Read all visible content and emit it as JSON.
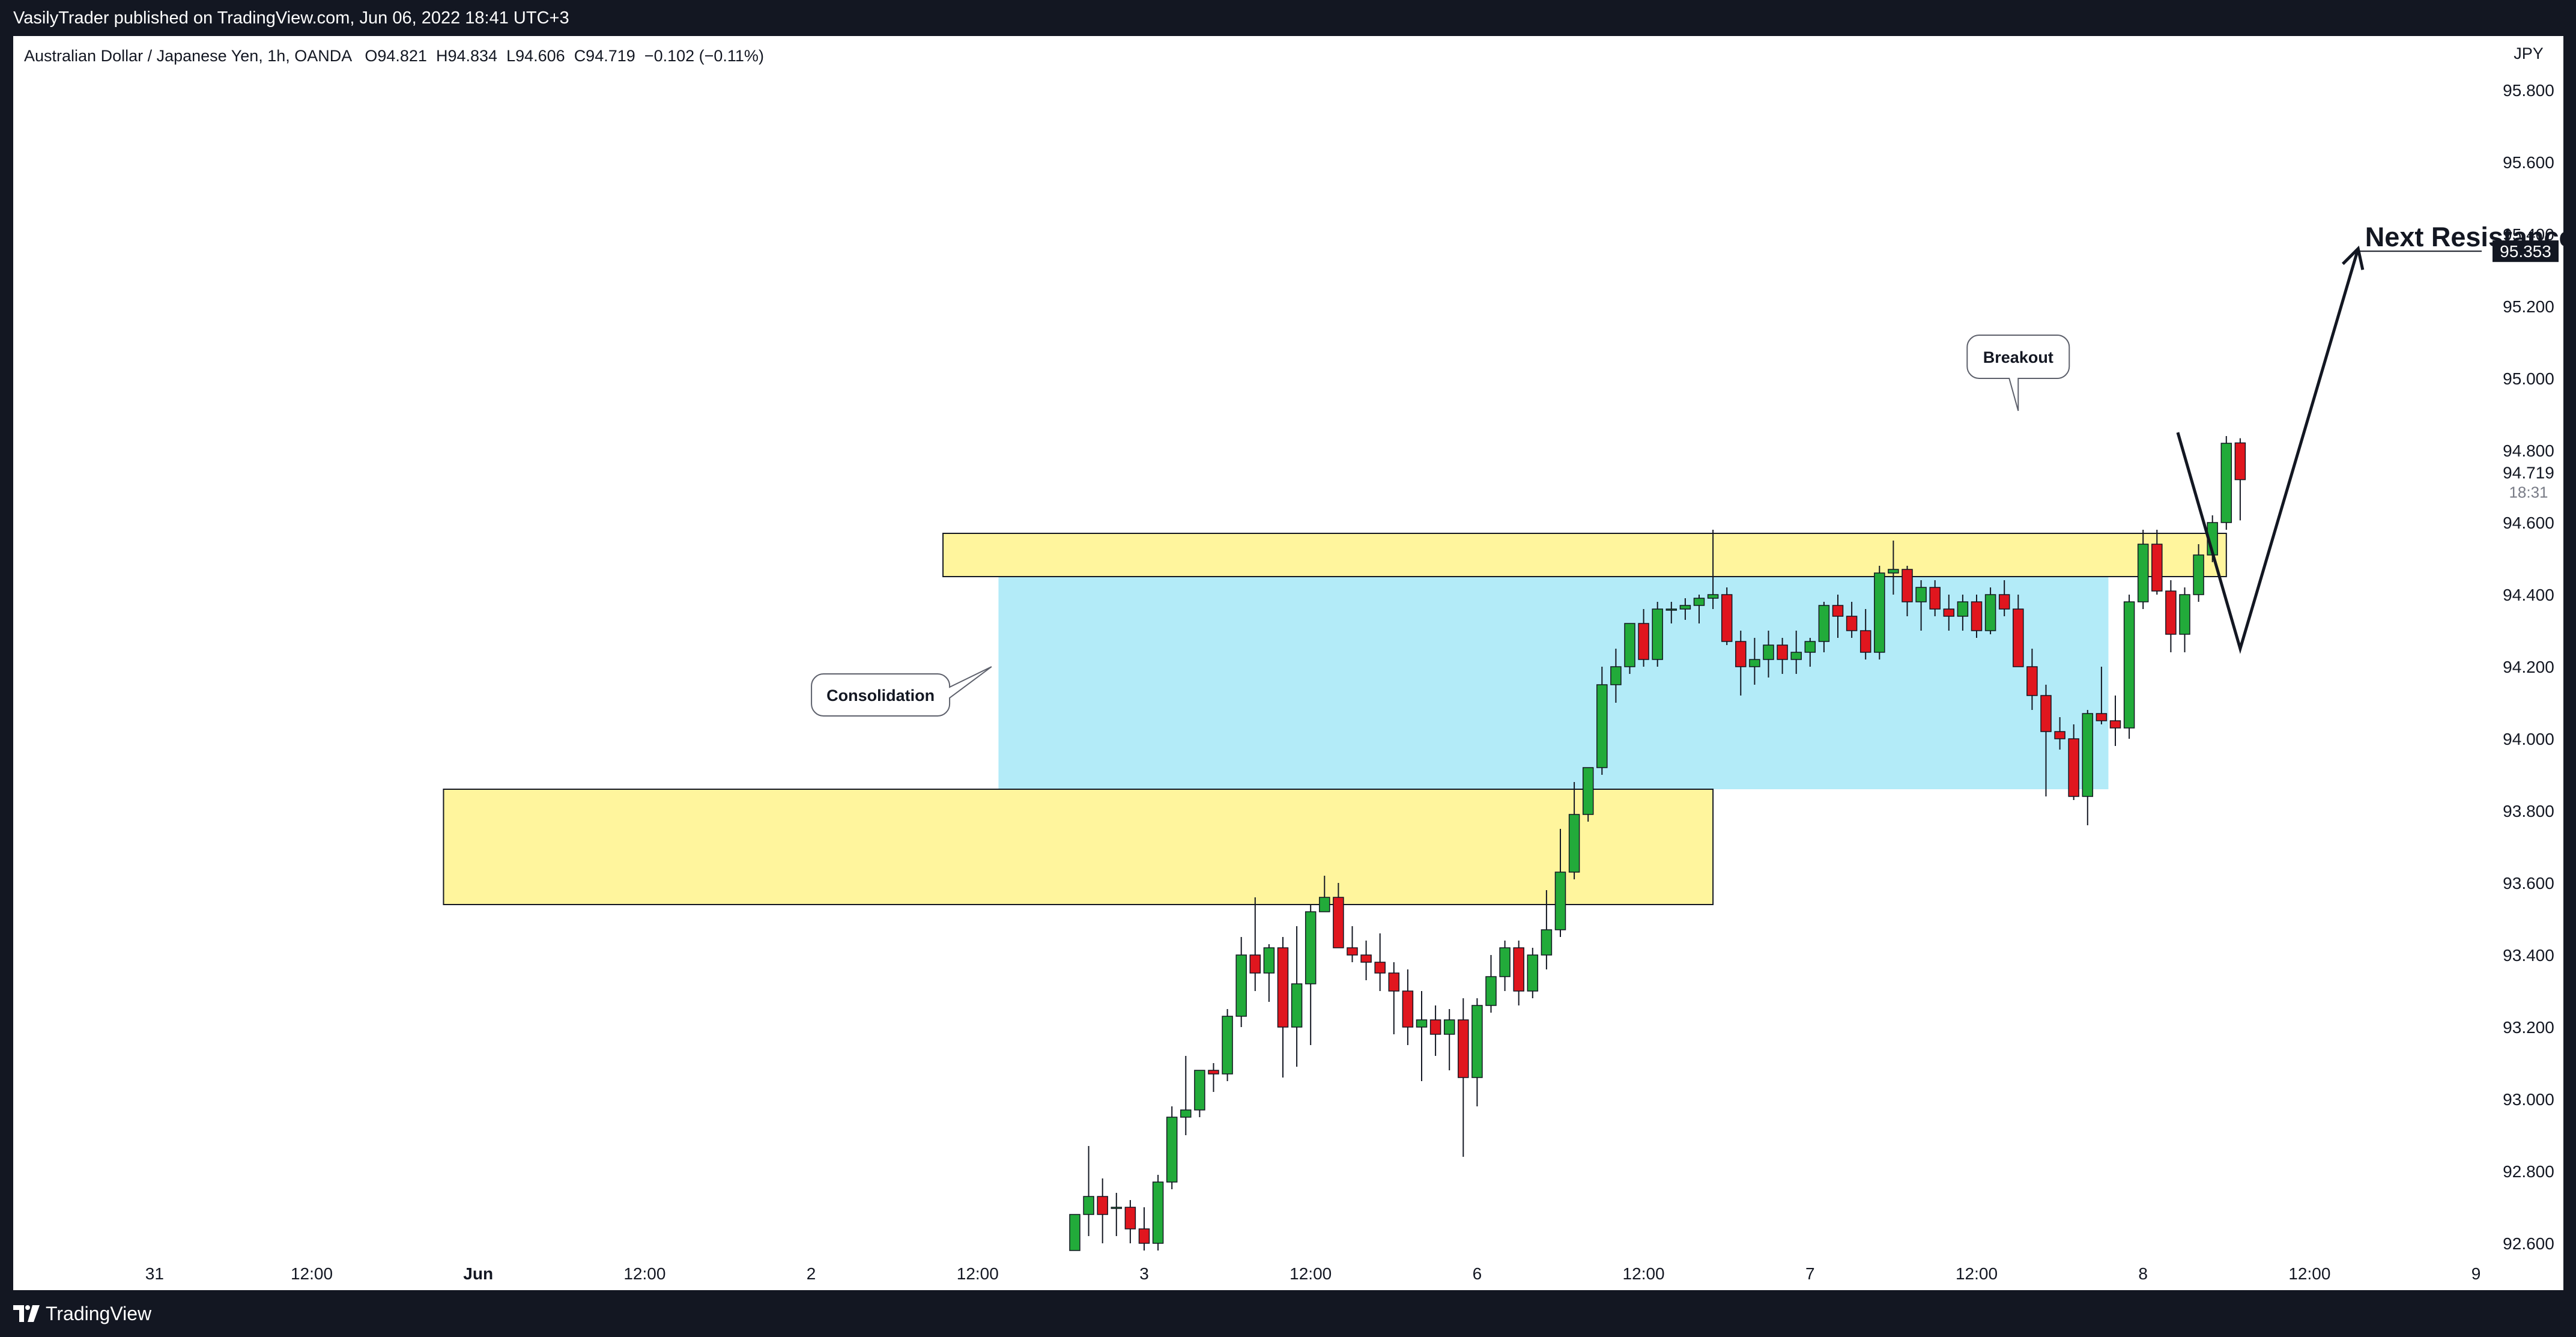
{
  "header": {
    "published": "VasilyTrader published on TradingView.com, Jun 06, 2022 18:41 UTC+3"
  },
  "legend": {
    "symbol": "Australian Dollar / Japanese Yen, 1h, OANDA",
    "open": "O94.821",
    "high": "H94.834",
    "low": "L94.606",
    "close": "C94.719",
    "change": "−0.102 (−0.11%)"
  },
  "footer": {
    "brand": "TradingView"
  },
  "colors": {
    "up": "#22ab3a",
    "down": "#e0161e",
    "zone_fill": "#fff59d",
    "consolidation_fill": "#b3ebf8",
    "frame_bg": "#131722"
  },
  "chart_data": {
    "type": "candlestick",
    "currency_label": "JPY",
    "ylim": [
      92.55,
      95.95
    ],
    "y_ticks": [
      "92.600",
      "92.800",
      "93.000",
      "93.200",
      "93.400",
      "93.600",
      "93.800",
      "94.000",
      "94.200",
      "94.400",
      "94.600",
      "94.800",
      "95.000",
      "95.200",
      "95.400",
      "95.600",
      "95.800"
    ],
    "x_ticks": [
      {
        "label": "31",
        "i": -67
      },
      {
        "label": "12:00",
        "i": -55
      },
      {
        "label": "Jun",
        "i": -43
      },
      {
        "label": "12:00",
        "i": -31
      },
      {
        "label": "2",
        "i": -19
      },
      {
        "label": "12:00",
        "i": -7
      },
      {
        "label": "3",
        "i": 5
      },
      {
        "label": "12:00",
        "i": 17
      },
      {
        "label": "6",
        "i": 29
      },
      {
        "label": "12:00",
        "i": 41
      },
      {
        "label": "7",
        "i": 53
      },
      {
        "label": "12:00",
        "i": 65
      },
      {
        "label": "8",
        "i": 77
      },
      {
        "label": "12:00",
        "i": 89
      },
      {
        "label": "9",
        "i": 101
      }
    ],
    "candles": [
      {
        "o": 92.58,
        "h": 92.68,
        "l": 92.58,
        "c": 92.68
      },
      {
        "o": 92.68,
        "h": 92.87,
        "l": 92.62,
        "c": 92.73
      },
      {
        "o": 92.73,
        "h": 92.78,
        "l": 92.6,
        "c": 92.68
      },
      {
        "o": 92.7,
        "h": 92.74,
        "l": 92.62,
        "c": 92.7
      },
      {
        "o": 92.7,
        "h": 92.72,
        "l": 92.6,
        "c": 92.64
      },
      {
        "o": 92.64,
        "h": 92.7,
        "l": 92.58,
        "c": 92.6
      },
      {
        "o": 92.6,
        "h": 92.79,
        "l": 92.58,
        "c": 92.77
      },
      {
        "o": 92.77,
        "h": 92.98,
        "l": 92.75,
        "c": 92.95
      },
      {
        "o": 92.95,
        "h": 93.12,
        "l": 92.9,
        "c": 92.97
      },
      {
        "o": 92.97,
        "h": 93.08,
        "l": 92.95,
        "c": 93.08
      },
      {
        "o": 93.08,
        "h": 93.1,
        "l": 93.02,
        "c": 93.07
      },
      {
        "o": 93.07,
        "h": 93.25,
        "l": 93.05,
        "c": 93.23
      },
      {
        "o": 93.23,
        "h": 93.45,
        "l": 93.2,
        "c": 93.4
      },
      {
        "o": 93.4,
        "h": 93.56,
        "l": 93.3,
        "c": 93.35
      },
      {
        "o": 93.35,
        "h": 93.43,
        "l": 93.27,
        "c": 93.42
      },
      {
        "o": 93.42,
        "h": 93.45,
        "l": 93.06,
        "c": 93.2
      },
      {
        "o": 93.2,
        "h": 93.48,
        "l": 93.09,
        "c": 93.32
      },
      {
        "o": 93.32,
        "h": 93.54,
        "l": 93.15,
        "c": 93.52
      },
      {
        "o": 93.52,
        "h": 93.62,
        "l": 93.52,
        "c": 93.56
      },
      {
        "o": 93.56,
        "h": 93.6,
        "l": 93.44,
        "c": 93.42
      },
      {
        "o": 93.42,
        "h": 93.48,
        "l": 93.38,
        "c": 93.4
      },
      {
        "o": 93.4,
        "h": 93.44,
        "l": 93.33,
        "c": 93.38
      },
      {
        "o": 93.38,
        "h": 93.46,
        "l": 93.3,
        "c": 93.35
      },
      {
        "o": 93.35,
        "h": 93.38,
        "l": 93.18,
        "c": 93.3
      },
      {
        "o": 93.3,
        "h": 93.36,
        "l": 93.15,
        "c": 93.2
      },
      {
        "o": 93.2,
        "h": 93.3,
        "l": 93.05,
        "c": 93.22
      },
      {
        "o": 93.22,
        "h": 93.26,
        "l": 93.12,
        "c": 93.18
      },
      {
        "o": 93.18,
        "h": 93.25,
        "l": 93.08,
        "c": 93.22
      },
      {
        "o": 93.22,
        "h": 93.28,
        "l": 92.84,
        "c": 93.06
      },
      {
        "o": 93.06,
        "h": 93.28,
        "l": 92.98,
        "c": 93.26
      },
      {
        "o": 93.26,
        "h": 93.4,
        "l": 93.24,
        "c": 93.34
      },
      {
        "o": 93.34,
        "h": 93.44,
        "l": 93.3,
        "c": 93.42
      },
      {
        "o": 93.42,
        "h": 93.44,
        "l": 93.26,
        "c": 93.3
      },
      {
        "o": 93.3,
        "h": 93.42,
        "l": 93.28,
        "c": 93.4
      },
      {
        "o": 93.4,
        "h": 93.58,
        "l": 93.36,
        "c": 93.47
      },
      {
        "o": 93.47,
        "h": 93.75,
        "l": 93.45,
        "c": 93.63
      },
      {
        "o": 93.63,
        "h": 93.88,
        "l": 93.61,
        "c": 93.79
      },
      {
        "o": 93.79,
        "h": 93.9,
        "l": 93.77,
        "c": 93.92
      },
      {
        "o": 93.92,
        "h": 94.2,
        "l": 93.9,
        "c": 94.15
      },
      {
        "o": 94.15,
        "h": 94.25,
        "l": 94.1,
        "c": 94.2
      },
      {
        "o": 94.2,
        "h": 94.32,
        "l": 94.18,
        "c": 94.32
      },
      {
        "o": 94.32,
        "h": 94.36,
        "l": 94.2,
        "c": 94.22
      },
      {
        "o": 94.22,
        "h": 94.38,
        "l": 94.2,
        "c": 94.36
      },
      {
        "o": 94.36,
        "h": 94.38,
        "l": 94.32,
        "c": 94.36
      },
      {
        "o": 94.36,
        "h": 94.39,
        "l": 94.33,
        "c": 94.37
      },
      {
        "o": 94.37,
        "h": 94.4,
        "l": 94.32,
        "c": 94.39
      },
      {
        "o": 94.39,
        "h": 94.58,
        "l": 94.36,
        "c": 94.4
      },
      {
        "o": 94.4,
        "h": 94.42,
        "l": 94.26,
        "c": 94.27
      },
      {
        "o": 94.27,
        "h": 94.3,
        "l": 94.12,
        "c": 94.2
      },
      {
        "o": 94.2,
        "h": 94.28,
        "l": 94.15,
        "c": 94.22
      },
      {
        "o": 94.22,
        "h": 94.3,
        "l": 94.17,
        "c": 94.26
      },
      {
        "o": 94.26,
        "h": 94.28,
        "l": 94.18,
        "c": 94.22
      },
      {
        "o": 94.22,
        "h": 94.3,
        "l": 94.18,
        "c": 94.24
      },
      {
        "o": 94.24,
        "h": 94.28,
        "l": 94.2,
        "c": 94.27
      },
      {
        "o": 94.27,
        "h": 94.38,
        "l": 94.24,
        "c": 94.37
      },
      {
        "o": 94.37,
        "h": 94.4,
        "l": 94.28,
        "c": 94.34
      },
      {
        "o": 94.34,
        "h": 94.38,
        "l": 94.28,
        "c": 94.3
      },
      {
        "o": 94.3,
        "h": 94.36,
        "l": 94.22,
        "c": 94.24
      },
      {
        "o": 94.24,
        "h": 94.48,
        "l": 94.22,
        "c": 94.46
      },
      {
        "o": 94.46,
        "h": 94.55,
        "l": 94.4,
        "c": 94.47
      },
      {
        "o": 94.47,
        "h": 94.48,
        "l": 94.34,
        "c": 94.38
      },
      {
        "o": 94.38,
        "h": 94.44,
        "l": 94.3,
        "c": 94.42
      },
      {
        "o": 94.42,
        "h": 94.44,
        "l": 94.34,
        "c": 94.36
      },
      {
        "o": 94.36,
        "h": 94.4,
        "l": 94.3,
        "c": 94.34
      },
      {
        "o": 94.34,
        "h": 94.4,
        "l": 94.3,
        "c": 94.38
      },
      {
        "o": 94.38,
        "h": 94.4,
        "l": 94.28,
        "c": 94.3
      },
      {
        "o": 94.3,
        "h": 94.42,
        "l": 94.29,
        "c": 94.4
      },
      {
        "o": 94.4,
        "h": 94.44,
        "l": 94.34,
        "c": 94.36
      },
      {
        "o": 94.36,
        "h": 94.4,
        "l": 94.2,
        "c": 94.2
      },
      {
        "o": 94.2,
        "h": 94.25,
        "l": 94.08,
        "c": 94.12
      },
      {
        "o": 94.12,
        "h": 94.15,
        "l": 93.84,
        "c": 94.02
      },
      {
        "o": 94.02,
        "h": 94.06,
        "l": 93.97,
        "c": 94.0
      },
      {
        "o": 94.0,
        "h": 94.04,
        "l": 93.83,
        "c": 93.84
      },
      {
        "o": 93.84,
        "h": 94.08,
        "l": 93.76,
        "c": 94.07
      },
      {
        "o": 94.07,
        "h": 94.2,
        "l": 94.04,
        "c": 94.05
      },
      {
        "o": 94.05,
        "h": 94.12,
        "l": 93.98,
        "c": 94.03
      },
      {
        "o": 94.03,
        "h": 94.4,
        "l": 94.0,
        "c": 94.38
      },
      {
        "o": 94.38,
        "h": 94.58,
        "l": 94.36,
        "c": 94.54
      },
      {
        "o": 94.54,
        "h": 94.58,
        "l": 94.4,
        "c": 94.41
      },
      {
        "o": 94.41,
        "h": 94.44,
        "l": 94.24,
        "c": 94.29
      },
      {
        "o": 94.29,
        "h": 94.42,
        "l": 94.24,
        "c": 94.4
      },
      {
        "o": 94.4,
        "h": 94.54,
        "l": 94.38,
        "c": 94.51
      },
      {
        "o": 94.51,
        "h": 94.62,
        "l": 94.49,
        "c": 94.6
      },
      {
        "o": 94.6,
        "h": 94.84,
        "l": 94.58,
        "c": 94.82
      },
      {
        "o": 94.821,
        "h": 94.834,
        "l": 94.606,
        "c": 94.719
      }
    ],
    "zones": [
      {
        "name": "support-zone",
        "i0": -45.5,
        "i1": 46,
        "low": 93.54,
        "high": 93.86,
        "fill": "#fff59d"
      },
      {
        "name": "resistance-zone",
        "i0": -9.5,
        "i1": 83,
        "low": 94.45,
        "high": 94.57,
        "fill": "#fff59d"
      },
      {
        "name": "consolidation-range",
        "i0": -5.5,
        "i1": 74.5,
        "low": 93.86,
        "high": 94.45,
        "fill": "#b3ebf8"
      }
    ],
    "projection_path": [
      {
        "i": 79.5,
        "y": 94.85
      },
      {
        "i": 84,
        "y": 94.25
      },
      {
        "i": 92.5,
        "y": 95.36
      }
    ],
    "annotations": [
      {
        "text": "Consolidation",
        "i": -14,
        "y": 94.18
      },
      {
        "text": "Breakout",
        "i": 68,
        "y": 95.12
      },
      {
        "text": "Next Resistance",
        "i": 93,
        "y": 95.38
      }
    ],
    "price_line": {
      "value": 95.353,
      "label": "95.353",
      "i0": 92.5
    },
    "last_price": {
      "label": "94.719",
      "value": 94.719,
      "countdown": "18:31"
    }
  }
}
